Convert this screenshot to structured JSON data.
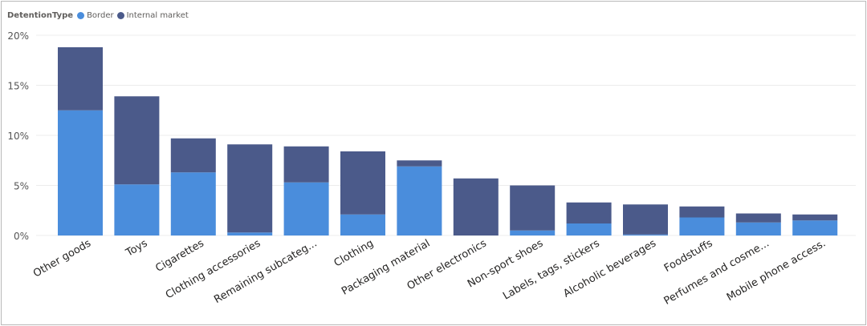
{
  "chart_data": {
    "type": "bar",
    "stacked": true,
    "legend": {
      "title": "DetentionType",
      "placement": "top-left"
    },
    "categories": [
      "Other goods",
      "Toys",
      "Cigarettes",
      "Clothing accessories",
      "Remaining subcateg...",
      "Clothing",
      "Packaging material",
      "Other electronics",
      "Non-sport shoes",
      "Labels, tags, stickers",
      "Alcoholic beverages",
      "Foodstuffs",
      "Perfumes and cosme...",
      "Mobile phone access."
    ],
    "series": [
      {
        "name": "Border",
        "color": "#4a8ddc",
        "values": [
          12.5,
          5.1,
          6.3,
          0.3,
          5.3,
          2.1,
          6.9,
          0.0,
          0.5,
          1.2,
          0.1,
          1.8,
          1.3,
          1.5
        ]
      },
      {
        "name": "Internal market",
        "color": "#4b5a8a",
        "values": [
          6.3,
          8.8,
          3.4,
          8.8,
          3.6,
          6.3,
          0.6,
          5.7,
          4.5,
          2.1,
          3.0,
          1.1,
          0.9,
          0.6
        ]
      }
    ],
    "y_ticks": [
      "0%",
      "5%",
      "10%",
      "15%",
      "20%"
    ],
    "ylim": [
      0,
      20
    ],
    "grid": true
  }
}
